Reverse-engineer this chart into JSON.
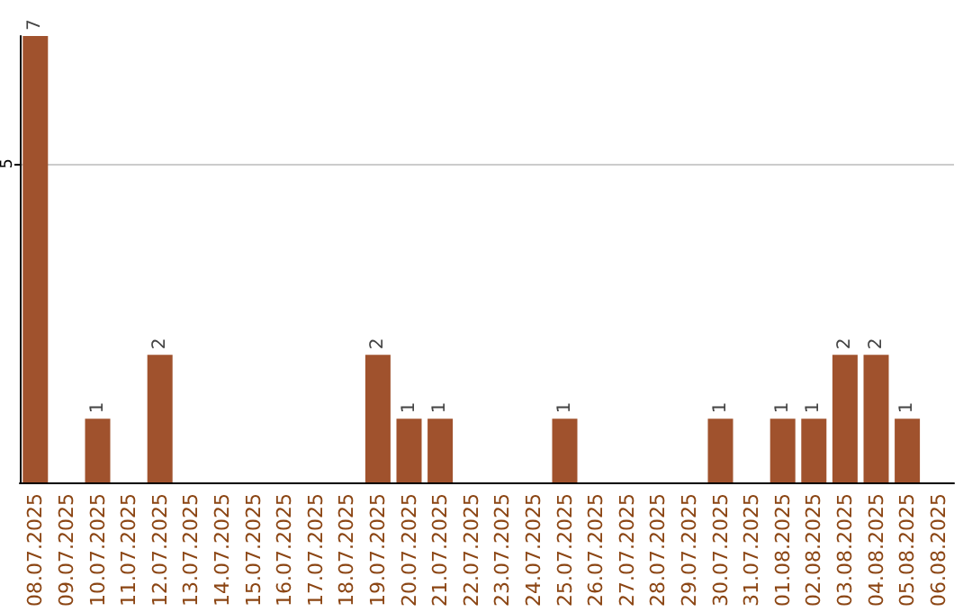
{
  "chart_data": {
    "type": "bar",
    "categories": [
      "08.07.2025",
      "09.07.2025",
      "10.07.2025",
      "11.07.2025",
      "12.07.2025",
      "13.07.2025",
      "14.07.2025",
      "15.07.2025",
      "16.07.2025",
      "17.07.2025",
      "18.07.2025",
      "19.07.2025",
      "20.07.2025",
      "21.07.2025",
      "22.07.2025",
      "23.07.2025",
      "24.07.2025",
      "25.07.2025",
      "26.07.2025",
      "27.07.2025",
      "28.07.2025",
      "29.07.2025",
      "30.07.2025",
      "31.07.2025",
      "01.08.2025",
      "02.08.2025",
      "03.08.2025",
      "04.08.2025",
      "05.08.2025",
      "06.08.2025"
    ],
    "values": [
      7,
      0,
      1,
      0,
      2,
      0,
      0,
      0,
      0,
      0,
      0,
      2,
      1,
      1,
      0,
      0,
      0,
      1,
      0,
      0,
      0,
      0,
      1,
      0,
      1,
      1,
      2,
      2,
      1,
      0
    ],
    "value_labels": [
      "7",
      null,
      "1",
      null,
      "2",
      null,
      null,
      null,
      null,
      null,
      null,
      "2",
      "1",
      "1",
      null,
      null,
      null,
      "1",
      null,
      null,
      null,
      null,
      "1",
      null,
      "1",
      "1",
      "2",
      "2",
      "1",
      null
    ],
    "color": "#a0522d",
    "ylim": [
      0,
      7
    ],
    "yticks": [
      5
    ],
    "grid": "y"
  }
}
